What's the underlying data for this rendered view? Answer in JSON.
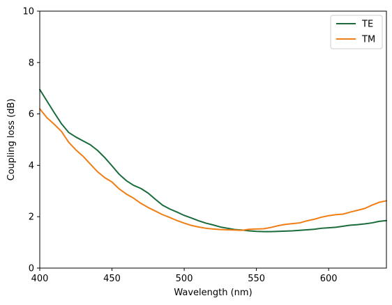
{
  "chart_data": {
    "type": "line",
    "title": "",
    "xlabel": "Wavelength (nm)",
    "ylabel": "Coupling loss (dB)",
    "xlim": [
      400,
      640
    ],
    "ylim": [
      0,
      10
    ],
    "xticks": [
      400,
      450,
      500,
      550,
      600
    ],
    "yticks": [
      0,
      2,
      4,
      6,
      8,
      10
    ],
    "grid": false,
    "legend_position": "top-right",
    "series": [
      {
        "name": "TE",
        "color": "#1a6b3c",
        "x": [
          400,
          405,
          410,
          415,
          420,
          425,
          430,
          435,
          440,
          445,
          450,
          455,
          460,
          465,
          470,
          475,
          480,
          485,
          490,
          495,
          500,
          505,
          510,
          515,
          520,
          525,
          530,
          535,
          540,
          545,
          550,
          555,
          560,
          565,
          570,
          575,
          580,
          585,
          590,
          595,
          600,
          605,
          610,
          615,
          620,
          625,
          630,
          635,
          640
        ],
        "y": [
          6.95,
          6.5,
          6.05,
          5.62,
          5.28,
          5.1,
          4.95,
          4.8,
          4.58,
          4.3,
          3.98,
          3.65,
          3.4,
          3.22,
          3.1,
          2.92,
          2.68,
          2.45,
          2.3,
          2.18,
          2.05,
          1.95,
          1.84,
          1.75,
          1.68,
          1.6,
          1.55,
          1.5,
          1.48,
          1.45,
          1.43,
          1.42,
          1.42,
          1.43,
          1.44,
          1.45,
          1.47,
          1.49,
          1.51,
          1.55,
          1.57,
          1.59,
          1.63,
          1.67,
          1.69,
          1.72,
          1.76,
          1.82,
          1.85
        ]
      },
      {
        "name": "TM",
        "color": "#f07e14",
        "x": [
          400,
          405,
          410,
          415,
          420,
          425,
          430,
          435,
          440,
          445,
          450,
          455,
          460,
          465,
          470,
          475,
          480,
          485,
          490,
          495,
          500,
          505,
          510,
          515,
          520,
          525,
          530,
          535,
          540,
          545,
          550,
          555,
          560,
          565,
          570,
          575,
          580,
          585,
          590,
          595,
          600,
          605,
          610,
          615,
          620,
          625,
          630,
          635,
          640
        ],
        "y": [
          6.2,
          5.85,
          5.6,
          5.32,
          4.9,
          4.6,
          4.35,
          4.05,
          3.75,
          3.52,
          3.35,
          3.08,
          2.88,
          2.72,
          2.52,
          2.36,
          2.22,
          2.08,
          1.97,
          1.85,
          1.75,
          1.66,
          1.6,
          1.55,
          1.52,
          1.5,
          1.49,
          1.48,
          1.47,
          1.51,
          1.52,
          1.53,
          1.58,
          1.65,
          1.7,
          1.73,
          1.76,
          1.84,
          1.9,
          1.98,
          2.04,
          2.08,
          2.1,
          2.18,
          2.25,
          2.32,
          2.45,
          2.56,
          2.62
        ]
      }
    ]
  }
}
